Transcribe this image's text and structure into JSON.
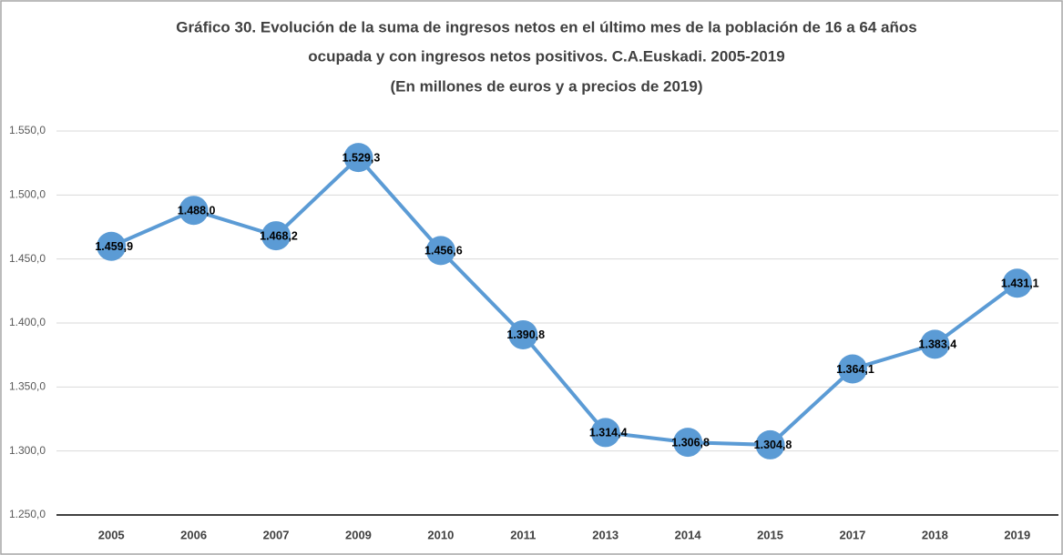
{
  "chart_data": {
    "type": "line",
    "title": [
      "Gráfico 30. Evolución de la suma de ingresos netos en el último mes de la población de 16 a 64 años",
      "ocupada y con ingresos netos positivos. C.A.Euskadi. 2005-2019",
      "(En millones de euros y a precios de 2019)"
    ],
    "categories": [
      "2005",
      "2006",
      "2007",
      "2009",
      "2010",
      "2011",
      "2013",
      "2014",
      "2015",
      "2017",
      "2018",
      "2019"
    ],
    "values": [
      1459.9,
      1488.0,
      1468.2,
      1529.3,
      1456.6,
      1390.8,
      1314.4,
      1306.8,
      1304.8,
      1364.1,
      1383.4,
      1431.1
    ],
    "value_labels": [
      "1.459,9",
      "1.488,0",
      "1.468,2",
      "1.529,3",
      "1.456,6",
      "1.390,8",
      "1.314,4",
      "1.306,8",
      "1.304,8",
      "1.364,1",
      "1.383,4",
      "1.431,1"
    ],
    "color": "#5b9bd5",
    "ylim": [
      1250,
      1550
    ],
    "yticks": [
      {
        "value": 1250,
        "label": "1.250,0"
      },
      {
        "value": 1300,
        "label": "1.300,0"
      },
      {
        "value": 1350,
        "label": "1.350,0"
      },
      {
        "value": 1400,
        "label": "1.400,0"
      },
      {
        "value": 1450,
        "label": "1.450,0"
      },
      {
        "value": 1500,
        "label": "1.500,0"
      },
      {
        "value": 1550,
        "label": "1.550,0"
      }
    ],
    "grid": true
  }
}
